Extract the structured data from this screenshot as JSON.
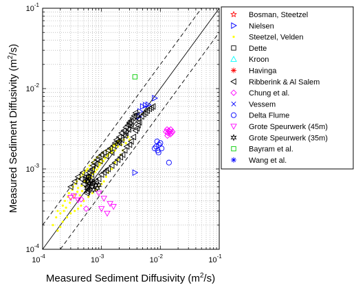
{
  "chart_data": {
    "type": "scatter",
    "xscale": "log",
    "yscale": "log",
    "xlim": [
      0.0001,
      0.1
    ],
    "ylim": [
      0.0001,
      0.1
    ],
    "grid": true,
    "legend_position": "outside-right",
    "xlabel": {
      "main": "Measured Sediment Diffusivity (m",
      "sup": "2",
      "tail": "/s)"
    },
    "ylabel": {
      "main": "Measured Sediment Diffusivity (m",
      "sup": "2",
      "tail": "/s)"
    },
    "ticks": [
      {
        "value": 0.0001,
        "base": "10",
        "exp": "-4"
      },
      {
        "value": 0.001,
        "base": "10",
        "exp": "-3"
      },
      {
        "value": 0.01,
        "base": "10",
        "exp": "-2"
      },
      {
        "value": 0.1,
        "base": "10",
        "exp": "-1"
      }
    ],
    "reference_lines": [
      {
        "style": "solid",
        "factor": 1
      },
      {
        "style": "dashed",
        "factor": 2
      },
      {
        "style": "dashed",
        "factor": 0.5
      }
    ],
    "series": [
      {
        "name": "Bosman, Steetzel",
        "marker": "star",
        "color": "#ff0000",
        "points": []
      },
      {
        "name": "Nielsen",
        "marker": "triangle-right",
        "color": "#0000ff",
        "points": [
          [
            0.0045,
            0.0052
          ],
          [
            0.005,
            0.006
          ],
          [
            0.0056,
            0.0062
          ],
          [
            0.0062,
            0.0063
          ],
          [
            0.008,
            0.0076
          ],
          [
            0.0037,
            0.0009
          ],
          [
            0.0043,
            0.0045
          ]
        ]
      },
      {
        "name": "Steetzel, Velden",
        "marker": "point",
        "color": "#ffff00",
        "points": [
          [
            0.00015,
            0.0002
          ],
          [
            0.00017,
            0.00025
          ],
          [
            0.00018,
            0.0003
          ],
          [
            0.0002,
            0.00028
          ],
          [
            0.00022,
            0.00035
          ],
          [
            0.00024,
            0.0004
          ],
          [
            0.00025,
            0.00033
          ],
          [
            0.00027,
            0.00045
          ],
          [
            0.00028,
            0.0005
          ],
          [
            0.0003,
            0.00042
          ],
          [
            0.00032,
            0.00055
          ],
          [
            0.00033,
            0.0006
          ],
          [
            0.00035,
            0.00048
          ],
          [
            0.00036,
            0.00065
          ],
          [
            0.00038,
            0.0007
          ],
          [
            0.0004,
            0.00058
          ],
          [
            0.00042,
            0.00075
          ],
          [
            0.00044,
            0.0008
          ],
          [
            0.00046,
            0.00062
          ],
          [
            0.00048,
            0.00085
          ],
          [
            0.0005,
            0.0009
          ],
          [
            0.00052,
            0.0007
          ],
          [
            0.00055,
            0.00095
          ],
          [
            0.00058,
            0.001
          ],
          [
            0.0006,
            0.0008
          ],
          [
            0.00063,
            0.0011
          ],
          [
            0.00066,
            0.0009
          ],
          [
            0.0007,
            0.0012
          ],
          [
            0.00073,
            0.001
          ],
          [
            0.00076,
            0.0013
          ],
          [
            0.0008,
            0.0011
          ],
          [
            0.00085,
            0.0014
          ],
          [
            0.0009,
            0.0012
          ],
          [
            0.00095,
            0.0015
          ],
          [
            0.001,
            0.0013
          ],
          [
            0.00105,
            0.0016
          ],
          [
            0.0011,
            0.0014
          ],
          [
            0.0012,
            0.0017
          ],
          [
            0.0013,
            0.0015
          ],
          [
            0.0014,
            0.0018
          ],
          [
            0.0015,
            0.0016
          ],
          [
            0.0016,
            0.002
          ],
          [
            0.0017,
            0.0017
          ],
          [
            0.0018,
            0.0021
          ],
          [
            0.0019,
            0.0019
          ],
          [
            0.002,
            0.0022
          ],
          [
            0.0022,
            0.002
          ],
          [
            0.0024,
            0.0023
          ],
          [
            0.0026,
            0.0021
          ],
          [
            0.0028,
            0.0025
          ],
          [
            0.003,
            0.0023
          ],
          [
            0.0023,
            0.0017
          ],
          [
            0.0021,
            0.0015
          ],
          [
            0.0019,
            0.0013
          ],
          [
            0.0017,
            0.0012
          ],
          [
            0.0015,
            0.001
          ],
          [
            0.0013,
            0.0009
          ],
          [
            0.0012,
            0.0008
          ],
          [
            0.0011,
            0.0007
          ],
          [
            0.001,
            0.00065
          ],
          [
            0.0009,
            0.0006
          ],
          [
            0.0008,
            0.00055
          ],
          [
            0.0007,
            0.0005
          ],
          [
            0.0006,
            0.00045
          ],
          [
            0.0005,
            0.0004
          ],
          [
            0.00045,
            0.00035
          ],
          [
            0.0004,
            0.00032
          ],
          [
            0.00035,
            0.0003
          ],
          [
            0.0003,
            0.00028
          ],
          [
            0.00026,
            0.00025
          ],
          [
            0.00022,
            0.00022
          ],
          [
            0.0002,
            0.00019
          ],
          [
            0.00018,
            0.00017
          ],
          [
            0.00023,
            0.0003
          ],
          [
            0.00029,
            0.00038
          ],
          [
            0.00034,
            0.00044
          ],
          [
            0.00039,
            0.00052
          ],
          [
            0.00043,
            0.00047
          ],
          [
            0.00047,
            0.00053
          ],
          [
            0.00053,
            0.0006
          ],
          [
            0.00057,
            0.00068
          ],
          [
            0.00062,
            0.00074
          ],
          [
            0.00067,
            0.00078
          ],
          [
            0.00072,
            0.00086
          ],
          [
            0.00078,
            0.00092
          ],
          [
            0.00083,
            0.00098
          ],
          [
            0.00088,
            0.00105
          ],
          [
            0.00093,
            0.00112
          ],
          [
            0.00098,
            0.00118
          ],
          [
            0.00108,
            0.00125
          ],
          [
            0.00115,
            0.00135
          ],
          [
            0.00125,
            0.00145
          ],
          [
            0.00135,
            0.0016
          ],
          [
            0.00145,
            0.00175
          ],
          [
            0.00155,
            0.00185
          ],
          [
            0.00165,
            0.00195
          ],
          [
            0.00175,
            0.00205
          ],
          [
            0.00185,
            0.00215
          ],
          [
            0.00195,
            0.00225
          ],
          [
            0.00205,
            0.00235
          ]
        ]
      },
      {
        "name": "Dette",
        "marker": "square",
        "color": "#000000",
        "points": []
      },
      {
        "name": "Kroon",
        "marker": "triangle-up",
        "color": "#00ffff",
        "points": []
      },
      {
        "name": "Havinga",
        "marker": "asterisk",
        "color": "#ff0000",
        "points": []
      },
      {
        "name": "Ribberink & Al Salem",
        "marker": "triangle-left",
        "color": "#000000",
        "points": [
          [
            0.0003,
            0.0006
          ],
          [
            0.00035,
            0.0007
          ],
          [
            0.0004,
            0.0008
          ],
          [
            0.00045,
            0.00075
          ],
          [
            0.00048,
            0.0009
          ],
          [
            0.0005,
            0.00065
          ],
          [
            0.00052,
            0.0007
          ],
          [
            0.00055,
            0.0008
          ],
          [
            0.00057,
            0.0006
          ],
          [
            0.0006,
            0.00075
          ],
          [
            0.00062,
            0.0009
          ],
          [
            0.00065,
            0.00095
          ],
          [
            0.00068,
            0.00085
          ],
          [
            0.0007,
            0.001
          ],
          [
            0.00072,
            0.0011
          ],
          [
            0.00075,
            0.0012
          ],
          [
            0.0008,
            0.00115
          ],
          [
            0.00085,
            0.0013
          ],
          [
            0.0009,
            0.0014
          ],
          [
            0.00095,
            0.00125
          ],
          [
            0.001,
            0.0015
          ],
          [
            0.0011,
            0.0016
          ],
          [
            0.0012,
            0.00145
          ],
          [
            0.0013,
            0.0017
          ],
          [
            0.0014,
            0.0018
          ],
          [
            0.0015,
            0.0016
          ],
          [
            0.0016,
            0.00195
          ],
          [
            0.0017,
            0.0021
          ],
          [
            0.0018,
            0.0023
          ],
          [
            0.0019,
            0.0022
          ],
          [
            0.002,
            0.0025
          ],
          [
            0.0022,
            0.0028
          ],
          [
            0.0024,
            0.003
          ],
          [
            0.0026,
            0.0033
          ],
          [
            0.0028,
            0.0035
          ],
          [
            0.003,
            0.0037
          ],
          [
            0.0032,
            0.004
          ],
          [
            0.0034,
            0.0043
          ],
          [
            0.0036,
            0.0046
          ],
          [
            0.0038,
            0.005
          ],
          [
            0.004,
            0.0047
          ],
          [
            0.0042,
            0.0042
          ],
          [
            0.0044,
            0.0038
          ],
          [
            0.0048,
            0.0045
          ],
          [
            0.0052,
            0.0048
          ],
          [
            0.0056,
            0.005
          ],
          [
            0.006,
            0.0053
          ],
          [
            0.0065,
            0.0056
          ],
          [
            0.007,
            0.0058
          ],
          [
            0.0075,
            0.006
          ],
          [
            0.0035,
            0.0025
          ],
          [
            0.0032,
            0.0022
          ],
          [
            0.003,
            0.002
          ],
          [
            0.0027,
            0.0019
          ],
          [
            0.0025,
            0.0017
          ],
          [
            0.0023,
            0.0015
          ],
          [
            0.0021,
            0.0014
          ],
          [
            0.0019,
            0.0013
          ],
          [
            0.0017,
            0.0012
          ],
          [
            0.0015,
            0.0011
          ],
          [
            0.0013,
            0.001
          ],
          [
            0.0012,
            0.00095
          ],
          [
            0.0011,
            0.0009
          ],
          [
            0.001,
            0.00085
          ],
          [
            0.0009,
            0.00075
          ],
          [
            0.0008,
            0.0007
          ],
          [
            0.0007,
            0.00065
          ],
          [
            0.0006,
            0.00055
          ],
          [
            0.00058,
            0.00052
          ],
          [
            0.00056,
            0.0005
          ],
          [
            0.003,
            0.0038
          ],
          [
            0.0032,
            0.0034
          ],
          [
            0.0038,
            0.003
          ],
          [
            0.004,
            0.0032
          ],
          [
            0.0042,
            0.0035
          ],
          [
            0.0025,
            0.0026
          ],
          [
            0.0022,
            0.0023
          ],
          [
            0.002,
            0.0021
          ],
          [
            0.0026,
            0.0028
          ],
          [
            0.0029,
            0.0031
          ]
        ]
      },
      {
        "name": "Chung et al.",
        "marker": "diamond",
        "color": "#ff00ff",
        "points": [
          [
            0.0125,
            0.0029
          ],
          [
            0.013,
            0.0031
          ],
          [
            0.0135,
            0.0028
          ],
          [
            0.014,
            0.003
          ],
          [
            0.0145,
            0.0029
          ],
          [
            0.015,
            0.0031
          ],
          [
            0.0155,
            0.0028
          ],
          [
            0.0132,
            0.0026
          ],
          [
            0.0148,
            0.0027
          ],
          [
            0.016,
            0.0029
          ],
          [
            0.00045,
            0.00042
          ],
          [
            0.00055,
            0.00032
          ]
        ]
      },
      {
        "name": "Vessem",
        "marker": "x",
        "color": "#0000ff",
        "points": []
      },
      {
        "name": "Delta Flume",
        "marker": "circle",
        "color": "#0000ff",
        "points": [
          [
            0.008,
            0.0018
          ],
          [
            0.0085,
            0.0019
          ],
          [
            0.009,
            0.0017
          ],
          [
            0.0095,
            0.002
          ],
          [
            0.01,
            0.0021
          ],
          [
            0.0105,
            0.0018
          ],
          [
            0.0088,
            0.0022
          ],
          [
            0.0093,
            0.0016
          ],
          [
            0.014,
            0.0012
          ]
        ]
      },
      {
        "name": "Grote Speurwerk (45m)",
        "marker": "triangle-down",
        "color": "#ff00ff",
        "points": [
          [
            0.0003,
            0.00044
          ],
          [
            0.00034,
            0.00046
          ],
          [
            0.0004,
            0.00041
          ],
          [
            0.0011,
            0.00043
          ],
          [
            0.0014,
            0.00037
          ],
          [
            0.0016,
            0.00034
          ],
          [
            0.001,
            0.00032
          ],
          [
            0.00125,
            0.00028
          ],
          [
            0.0009,
            0.0005
          ]
        ]
      },
      {
        "name": "Grote Speurwerk (35m)",
        "marker": "hexagram",
        "color": "#000000",
        "points": [
          [
            0.00055,
            0.00075
          ],
          [
            0.00058,
            0.0007
          ],
          [
            0.0006,
            0.0008
          ],
          [
            0.00063,
            0.00065
          ],
          [
            0.00066,
            0.00072
          ],
          [
            0.0007,
            0.0006
          ],
          [
            0.00073,
            0.00055
          ],
          [
            0.00076,
            0.00068
          ],
          [
            0.0008,
            0.00062
          ],
          [
            0.00085,
            0.00058
          ],
          [
            0.0009,
            0.00063
          ],
          [
            0.00057,
            0.00058
          ]
        ]
      },
      {
        "name": "Bayram et al.",
        "marker": "square",
        "color": "#00cc00",
        "points": [
          [
            0.0037,
            0.014
          ]
        ]
      },
      {
        "name": "Wang et al.",
        "marker": "asterisk",
        "color": "#0000ff",
        "points": []
      }
    ]
  }
}
